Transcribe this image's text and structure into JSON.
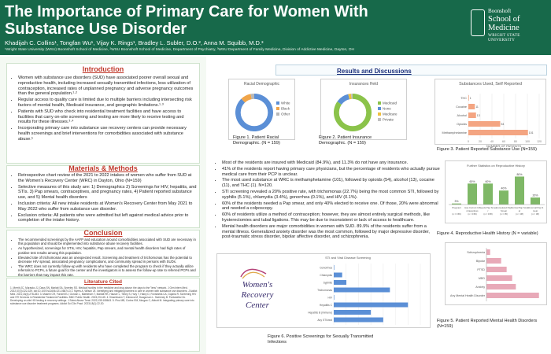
{
  "header": {
    "title": "The Importance of Primary Care for Women With Substance Use Disorder",
    "authors": "Khadijah C. Collins¹, Tongfan Wu¹, Vijay K. Rings¹, Bradley L. Subler, D.O.², Anna M. Squibb, M.D.³",
    "affiliations": "¹Wright State University (WSU) Boonshoft School of Medicine, ²WSU Boonshoft School of Medicine, Department of Psychiatry, ³WSU Department of Family Medicine, Division of Addictive Medicine, Dayton, OH",
    "logo_line1": "Boonshoft",
    "logo_line2": "School of Medicine",
    "logo_line3": "WRIGHT STATE UNIVERSITY"
  },
  "introduction": {
    "heading": "Introduction",
    "bullets": [
      "Women with substance use disorders (SUD) have associated poorer overall sexual and reproductive health, including increased sexually transmitted infections, less utilization of contraception, increased rates of unplanned pregnancy and adverse pregnancy outcomes than the general population.¹·²",
      "Regular access to quality care is limited due to multiple barriers including intersecting risk factors of mental health, Medicaid insurance, and geographic limitations.¹·³",
      "Patients with SUD who check into residential treatment facilities and have access to facilities that carry on-site screening and testing are more likely to receive testing and results for these illnesses.³·⁴",
      "Incorporating primary care into substance use recovery centers can provide necessary health screenings and brief interventions for comorbidities associated with substance abuse.⁵"
    ]
  },
  "methods": {
    "heading": "Materials & Methods",
    "bullets": [
      "Retrospective chart review of the 2021 to 2022 intakes of women who suffer from SUD at the Women's Recovery Center (WRC) in Dayton, Ohio (N=159)",
      "Selective measures of this study are: 1) Demographics 2) Screenings for HIV, hepatitis, and STIs. 3) Pap smears, contraceptives, and pregnancy rates, 4) Patient reported substance use, and 5) Mental health disorders",
      "Inclusion criteria: All new intake residents at Women's Recovery Center from May 2021 to May 2022 who suffer from substance use disorder.",
      "Exclusion criteria: All patients who were admitted but left against medical advice prior to completion of the intake history."
    ]
  },
  "conclusion": {
    "heading": "Conclusion",
    "bullets": [
      "The recommended screenings by the AAFP and education around comorbidities associated with SUD are necessary in this population and should be implemented into substance abuse recovery facilities.",
      "As hypothesized, screenings for STIs, HIV, hepatitis, Pap smears, and mental health disorders had high rates of positive test results among this population.",
      "Elevated rate of trichomonas was an unexpected result. Screening and treatment of trichomonas has the potential to decrease HIV spread, associated pregnancy complications, and community spread in persons with SUDs.",
      "The WRC does not currently follow-up with residents who have completed the program to check if they actually utilize referrals to PCPs, a future goal for the center and the investigators is to assess the follow-up rate to referred PCPs and the barriers that may impact this rate."
    ]
  },
  "literature": {
    "heading": "Literature Cited",
    "text": "1. Merritt JC, Murasko JJ, Daus SN, Marlatt SA, Sneeley SS. Medical hurdles in the medicine and drug abuse: the days to the \"lens\" network. J Gen Intern Med. 2022;37(3):322-329. doi:10.1007/s11606-021-06874-3  2. Myers A, Wilson JE. Identifying and mitigating barriers to care in women with substance use disorders. J Addict Med. 2021;15(4):278-283.  3. Maserli CR, Fondell EJ, Gordon L, Mathiesen T, Marlatt RK, Hauser L, Timey S, Hury T, Haley D, Fontanella CA, Gojaria R. Screening HIV and STI Services in Residential Treatment Facilities. BMC Public Health. 2023;23:145.  4. Kisselmann T, Zobrava M, Daugurson L. Sweeney B. Fontanella CA. Developing on-site HIV testing in recovery settings. J Subst Abuse Treat. 2022;135:108643.  5. Pinz MB, Cortez EM, Morgan C, Abbott M. Integrating primary care into substance use disorder treatment programs. Addict Sci Clin Pract. 2023;18(1):22-30."
  },
  "results": {
    "heading": "Results and Discussions",
    "fig1": {
      "chart_title": "Racial Demographic",
      "caption": "Figure 1. Patient Racial Demographic. (N = 159)"
    },
    "fig2": {
      "chart_title": "Insurances Held",
      "caption": "Figure 2. Patient Insurance Demographic. (N = 159)"
    },
    "fig3": {
      "chart_title": "Substances Used, Self Reported",
      "xlabel": "NUMBER OF PATIENTS",
      "caption": "Figure 3. Patient Reported Substance Use (N=159)"
    },
    "fig4": {
      "chart_title": "Further Statistics on Reproductive History",
      "caption": "Figure 4. Reproductive Health History (N = variable)"
    },
    "fig5": {
      "caption": "Figure 5. Patient Reported Mental Health Disorders (N=159)"
    },
    "fig6": {
      "chart_title": "STI and Viral Disease Screening",
      "logo_line1": "Women's",
      "logo_line2": "Recovery",
      "logo_line3": "Center",
      "caption": "Figure 6. Positive Screenings for Sexually Transmitted Infections"
    },
    "bullets": [
      "Most of the residents are insured with Medicaid (84.9%), and 11.3% do not have any insurance.",
      "41% of the residents report having primary care physicians, but the percentage of residents who actually pursue medical care from their PCP is unclear.",
      "The most used substance at WRC is methamphetamine (101), followed by opioids (54), alcohol (13), cocaine (11), and THC (1). N=120.",
      "STI screening revealed a 20% positive rate, with trichomonas (22.7%) being the most common STI, followed by syphilis (5.1%), chlamydia (3.4%), gonorrhea (0.1%), and HIV (0.1%).",
      "60% of the residents needed a Pap smear, and only 40% elected to receive one. Of those, 20% were abnormal and needed a colposcopy.",
      "60% of residents utilize a method of contraception; however, they are almost entirely surgical methods, like hysterectomies and tubal ligations. This may be due to inconsistent or lack of access to healthcare.",
      "Mental health disorders are major comorbidities in women with SUD. 89.9% of the residents suffer from a mental illness. Generalized anxiety disorder was the most common, followed by major depressive disorder, post-traumatic stress disorder, bipolar affective disorder, and schizophrenia."
    ]
  },
  "chart_data": [
    {
      "type": "pie",
      "title": "Racial Demographic",
      "labels": [
        "White",
        "Black",
        "Other"
      ],
      "colors": [
        "#5b8fd6",
        "#f0a54a",
        "#b8b8b8"
      ],
      "values": [
        88,
        9,
        3
      ]
    },
    {
      "type": "pie",
      "title": "Insurances Held",
      "labels": [
        "Medicaid",
        "None",
        "Medicare",
        "Private"
      ],
      "colors": [
        "#8bc34a",
        "#5b8fd6",
        "#f0c040",
        "#c0c0c0"
      ],
      "values": [
        84.9,
        11.3,
        2.5,
        1.3
      ]
    },
    {
      "type": "bar",
      "title": "Substances Used, Self Reported",
      "categories": [
        "THC",
        "Cocaine",
        "Alcohol",
        "Opioids",
        "Methamphetamine"
      ],
      "values": [
        1,
        11,
        13,
        54,
        101
      ],
      "xlabel": "NUMBER OF PATIENTS",
      "color": "#f4a582"
    },
    {
      "type": "bar",
      "title": "Further Statistics on Reproductive History",
      "categories": [
        "Pregnant (n = 159)",
        "Has Current Contraceptives (n = 159)",
        "Needs Pap Smear (n = 158)",
        "Completed Pap Smear (n = 95)",
        "Normal Pap Smear (n = 38)",
        "Abnormal Pap Smear (n = 38)"
      ],
      "value_labels": [
        "3%",
        "60%",
        "60%",
        "40%",
        "80%",
        "20%"
      ],
      "values": [
        3,
        60,
        60,
        40,
        80,
        20
      ],
      "ylim": [
        0,
        90
      ],
      "color": "#7fb867"
    },
    {
      "type": "bar",
      "categories": [
        "Schizophrenia",
        "Bipolar",
        "PTSD",
        "MDD",
        "Anxiety",
        "Any Mental Health Disorder"
      ],
      "values": [
        10,
        40,
        55,
        70,
        80,
        143
      ],
      "color": "#e8a9b8"
    },
    {
      "type": "bar",
      "title": "STI and Viral Disease Screening",
      "categories": [
        "Gonorrhea",
        "Chlamydia",
        "Syphilis",
        "Trichomonas",
        "HIV",
        "Hepatitis C",
        "Hepatitis B (immune)",
        "Any STI/viral"
      ],
      "values": [
        0.1,
        3.4,
        5.1,
        22.7,
        0.1,
        30,
        15,
        20
      ],
      "color": "#5b8fd6"
    }
  ]
}
